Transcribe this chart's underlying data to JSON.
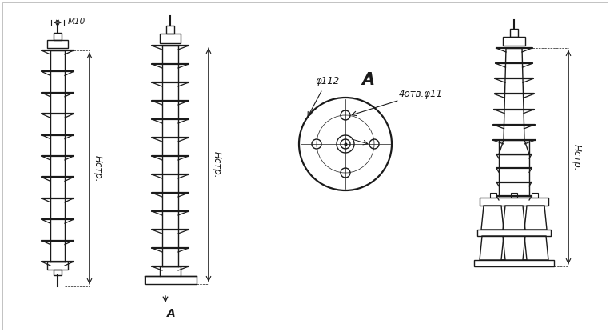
{
  "bg_color": "#ffffff",
  "line_color": "#1a1a1a",
  "fig_width": 7.63,
  "fig_height": 4.15,
  "dpi": 100,
  "annotations": {
    "M10": "M10",
    "phi112": "φ112",
    "label_A_section": "A",
    "label_A_view": "A",
    "holes": "4отв.φ11",
    "Hstr1": "Нстр.",
    "Hstr2": "Нстр.",
    "Hstr3": "Нстр."
  }
}
